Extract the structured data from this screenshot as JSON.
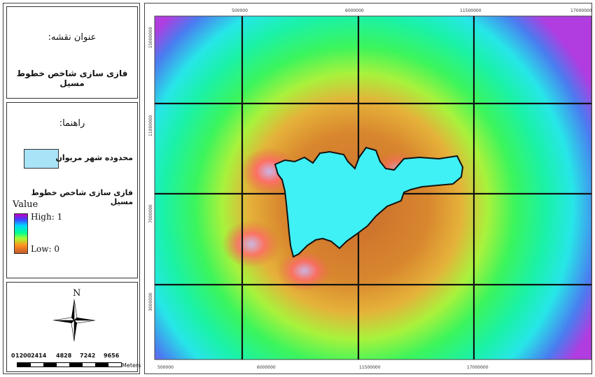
{
  "title_panel": {
    "heading": "عنوان نقشه:",
    "map_name": "فازی سازی شاخص خطوط مسیل"
  },
  "legend": {
    "heading": "راهنما:",
    "city_boundary_label": "محدوده شهر مریوان",
    "raster_title": "فازی سازی شاخص خطوط مسیل",
    "value_label": "Value",
    "high_label": "High: 1",
    "low_label": "Low: 0",
    "colors": {
      "city_fill": "#a9e3f7",
      "ramp": [
        "#c000c0",
        "#4040ff",
        "#00d8ff",
        "#00ff90",
        "#a0ff30",
        "#ff9020",
        "#c25a2a"
      ]
    }
  },
  "north_arrow": {
    "label": "N",
    "icon": "north-arrow-compass-icon"
  },
  "scale_bar": {
    "labels": [
      "0",
      "1200",
      "2414",
      "4828",
      "7242",
      "9656"
    ],
    "unit": "Meters"
  },
  "map": {
    "top_ticks": [
      "500000",
      "6000000",
      "11500000",
      "17000000"
    ],
    "bottom_ticks": [
      "500000",
      "6000000",
      "11500000",
      "17000000"
    ],
    "left_ticks": [
      "15000000",
      "11000000",
      "7000000",
      "3000000"
    ],
    "city_fill": "#3ff0f4"
  }
}
